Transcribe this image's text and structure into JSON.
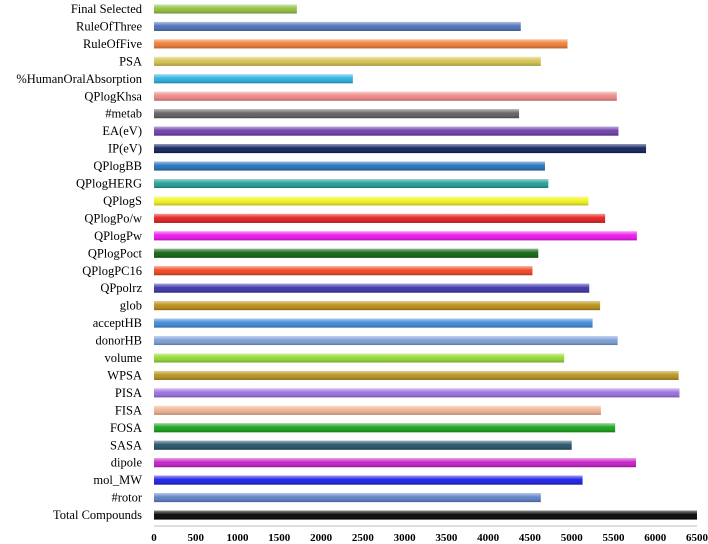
{
  "chart_data": {
    "type": "bar",
    "orientation": "horizontal",
    "title": "",
    "xlabel": "",
    "ylabel": "",
    "xlim": [
      0,
      6500
    ],
    "xticks": [
      0,
      500,
      1000,
      1500,
      2000,
      2500,
      3000,
      3500,
      4000,
      4500,
      5000,
      5500,
      6000,
      6500
    ],
    "grid": false,
    "legend": "none",
    "categories": [
      "Final Selected",
      "RuleOfThree",
      "RuleOfFive",
      "PSA",
      "%HumanOralAbsorption",
      "QPlogKhsa",
      "#metab",
      "EA(eV)",
      "IP(eV)",
      "QPlogBB",
      "QPlogHERG",
      "QPlogS",
      "QPlogPo/w",
      "QPlogPw",
      "QPlogPoct",
      "QPlogPC16",
      "QPpolrz",
      "glob",
      "acceptHB",
      "donorHB",
      "volume",
      "WPSA",
      "PISA",
      "FISA",
      "FOSA",
      "SASA",
      "dipole",
      "mol_MW",
      "#rotor",
      "Total Compounds"
    ],
    "values": [
      1710,
      4390,
      4950,
      4630,
      2380,
      5540,
      4370,
      5560,
      5890,
      4680,
      4720,
      5200,
      5400,
      5780,
      4600,
      4530,
      5210,
      5340,
      5250,
      5550,
      4910,
      6280,
      6290,
      5350,
      5520,
      5000,
      5770,
      5130,
      4630,
      6500
    ],
    "colors": [
      "#8fbf3a",
      "#4a6fb8",
      "#ee7b30",
      "#d4c14a",
      "#27aee0",
      "#f08585",
      "#5e5e5e",
      "#6b3aa8",
      "#0c1f5a",
      "#1f6fba",
      "#1f9e96",
      "#f2f21a",
      "#e31a1a",
      "#ee10ee",
      "#0b620b",
      "#f0411a",
      "#3a30a8",
      "#b88c10",
      "#3a88d8",
      "#7a9ed8",
      "#92d830",
      "#b8901a",
      "#9a6ee0",
      "#f0b090",
      "#15a015",
      "#1e4e64",
      "#c61ac6",
      "#1a1ae6",
      "#5a7ec8",
      "#000000"
    ]
  }
}
